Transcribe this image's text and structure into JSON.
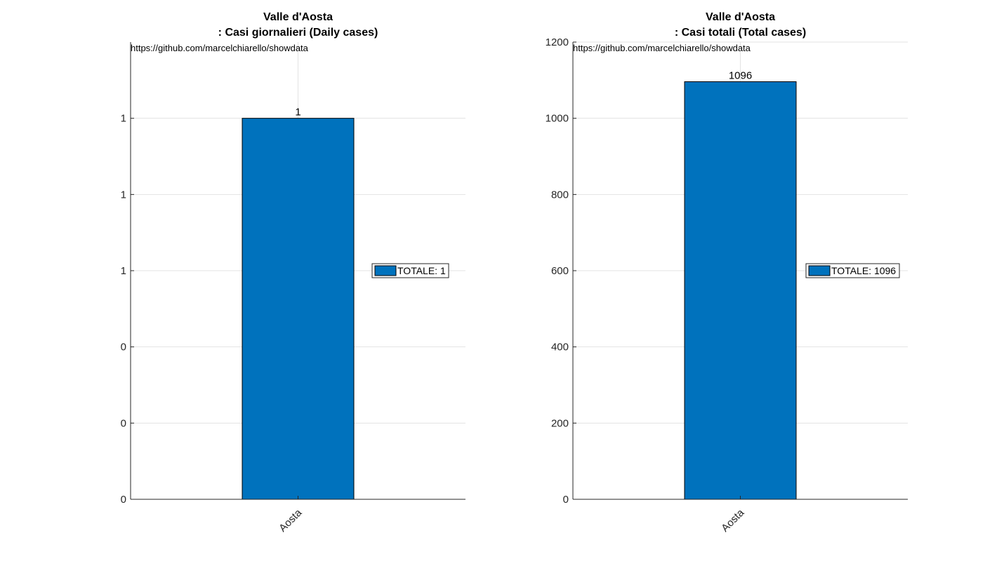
{
  "chart_data": [
    {
      "type": "bar",
      "title": [
        "Valle d'Aosta",
        ": Casi giornalieri (Daily cases)"
      ],
      "annotation": "https://github.com/marcelchiarello/showdata",
      "categories": [
        "Aosta"
      ],
      "values": [
        1
      ],
      "data_labels": [
        "1"
      ],
      "ylim": [
        0,
        1.2
      ],
      "yticks": [
        0,
        0.2,
        0.4,
        0.6,
        0.8,
        1.0
      ],
      "ytick_labels": [
        "0",
        "0",
        "0",
        "1",
        "1",
        "1"
      ],
      "legend": [
        "TOTALE: 1"
      ],
      "legend_position": "right",
      "grid": true,
      "bar_color": "#0072BD"
    },
    {
      "type": "bar",
      "title": [
        "Valle d'Aosta",
        ": Casi totali (Total cases)"
      ],
      "annotation": "https://github.com/marcelchiarello/showdata",
      "categories": [
        "Aosta"
      ],
      "values": [
        1096
      ],
      "data_labels": [
        "1096"
      ],
      "ylim": [
        0,
        1200
      ],
      "yticks": [
        0,
        200,
        400,
        600,
        800,
        1000,
        1200
      ],
      "ytick_labels": [
        "0",
        "200",
        "400",
        "600",
        "800",
        "1000",
        "1200"
      ],
      "legend": [
        "TOTALE: 1096"
      ],
      "legend_position": "right",
      "grid": true,
      "bar_color": "#0072BD"
    }
  ]
}
